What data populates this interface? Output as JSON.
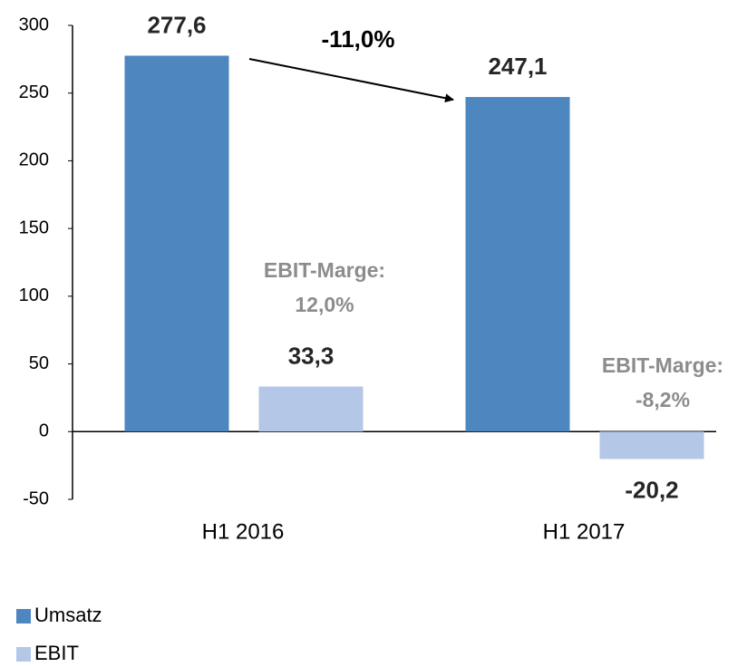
{
  "chart_data": {
    "type": "bar",
    "categories": [
      "H1 2016",
      "H1 2017"
    ],
    "series": [
      {
        "name": "Umsatz",
        "color": "#4e86bf",
        "values": [
          277.6,
          247.1
        ],
        "value_labels": [
          "277,6",
          "247,1"
        ]
      },
      {
        "name": "EBIT",
        "color": "#b4c7e7",
        "values": [
          33.3,
          -20.2
        ],
        "value_labels": [
          "33,3",
          "-20,2"
        ]
      }
    ],
    "annotations": [
      "-11,0%",
      "EBIT-Marge:",
      "12,0%",
      "EBIT-Marge:",
      "-8,2%"
    ],
    "ylim": [
      -50,
      300
    ],
    "yticks": [
      -50,
      0,
      50,
      100,
      150,
      200,
      250,
      300
    ],
    "grid": false,
    "legend": "bottom-left"
  }
}
